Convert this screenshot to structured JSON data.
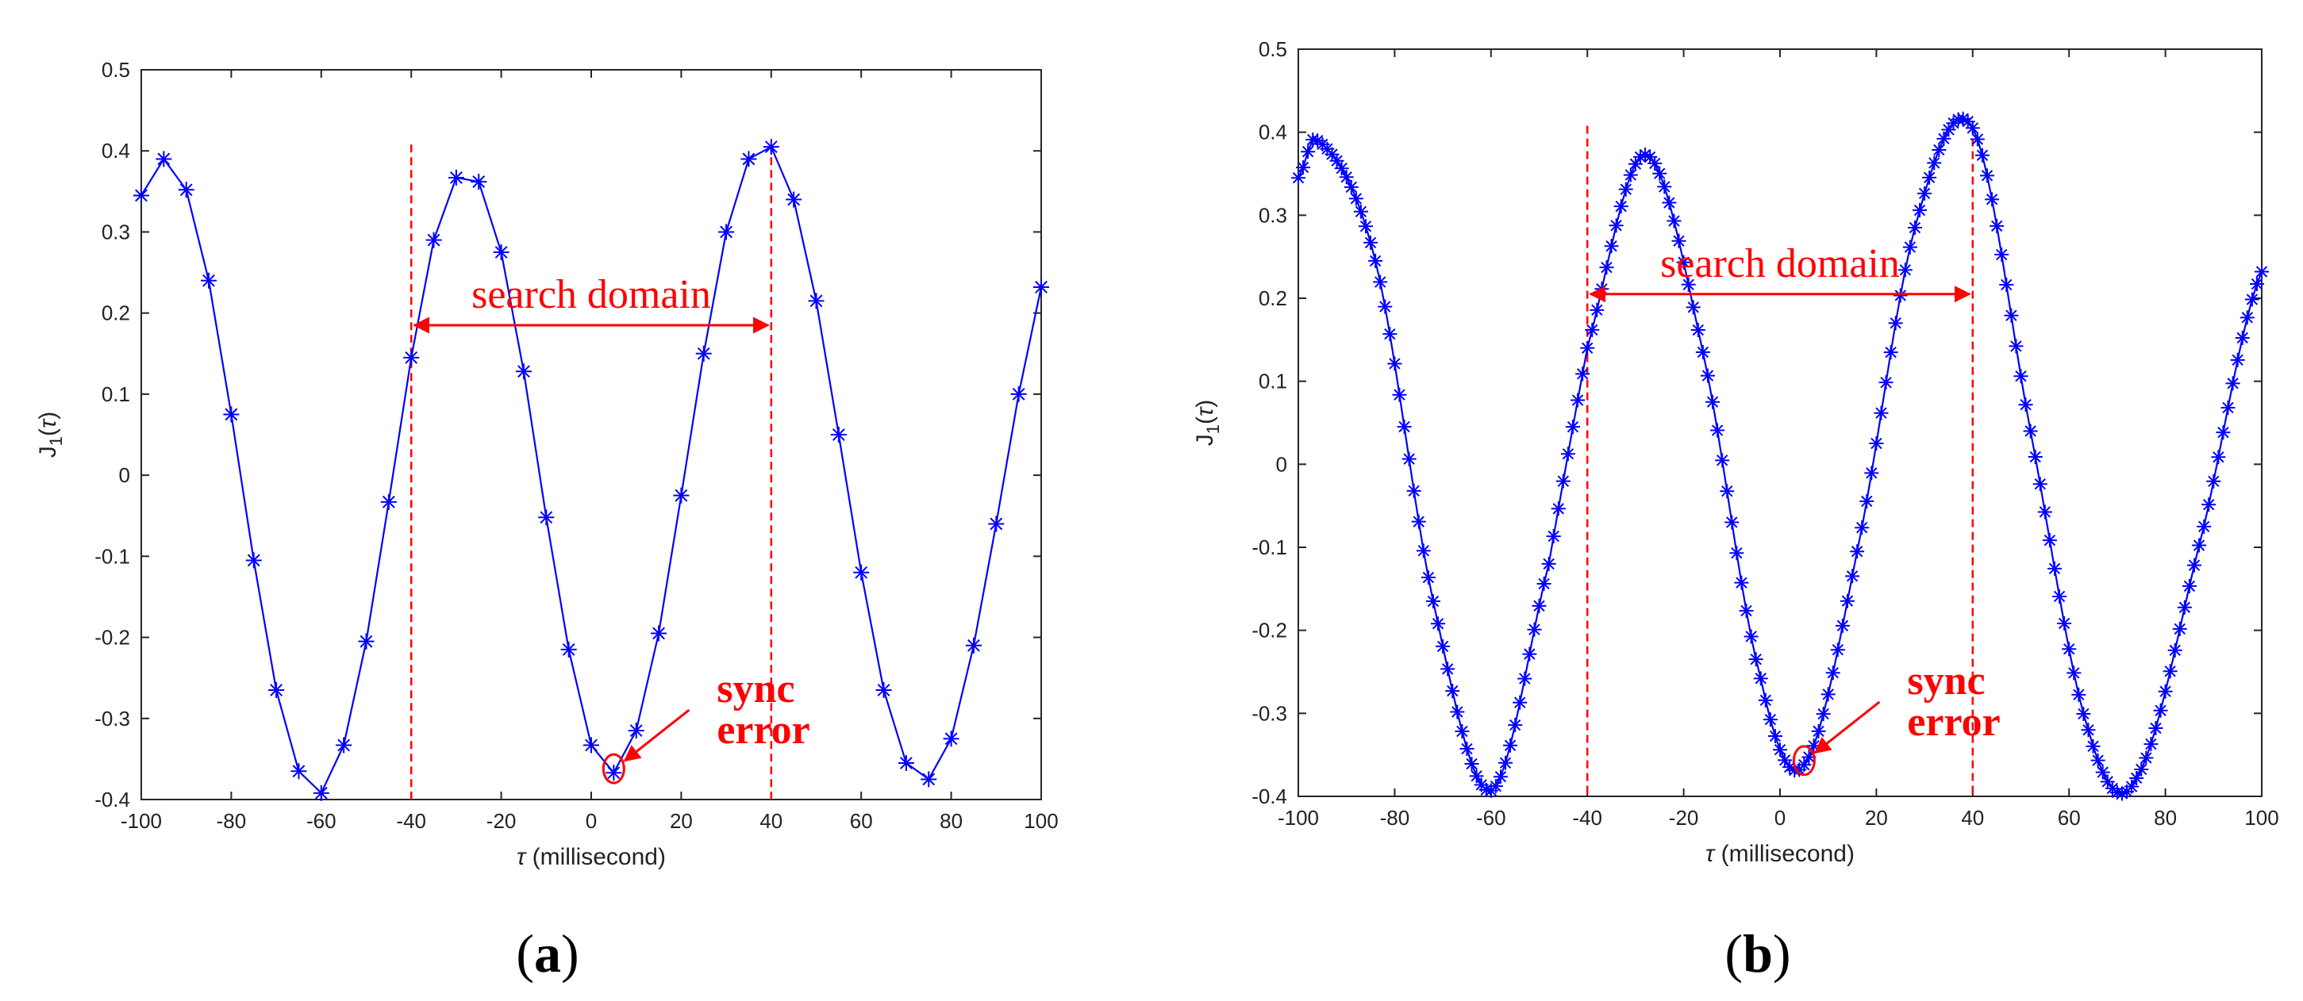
{
  "chart_data": [
    {
      "type": "line",
      "panel_label": "(a)",
      "panel_letter": "a",
      "xlabel": "τ (millisecond)",
      "ylabel": "J1(τ)",
      "xlim": [
        -100,
        100
      ],
      "ylim": [
        -0.4,
        0.5
      ],
      "xticks": [
        -100,
        -80,
        -60,
        -40,
        -20,
        0,
        20,
        40,
        60,
        80,
        100
      ],
      "yticks": [
        -0.4,
        -0.3,
        -0.2,
        -0.1,
        0,
        0.1,
        0.2,
        0.3,
        0.4,
        0.5
      ],
      "grid": false,
      "marker": "asterisk",
      "series": [
        {
          "color": "#0000ff",
          "x": [
            -100,
            -95,
            -90,
            -85,
            -80,
            -75,
            -70,
            -65,
            -60,
            -55,
            -50,
            -45,
            -40,
            -35,
            -30,
            -25,
            -20,
            -15,
            -10,
            -5,
            0,
            5,
            10,
            15,
            20,
            25,
            30,
            35,
            40,
            45,
            50,
            55,
            60,
            65,
            70,
            75,
            80,
            85,
            90,
            95,
            100
          ],
          "y": [
            0.345,
            0.39,
            0.352,
            0.24,
            0.075,
            -0.105,
            -0.265,
            -0.365,
            -0.392,
            -0.333,
            -0.205,
            -0.033,
            0.145,
            0.29,
            0.367,
            0.362,
            0.275,
            0.128,
            -0.052,
            -0.215,
            -0.333,
            -0.367,
            -0.315,
            -0.195,
            -0.025,
            0.15,
            0.3,
            0.39,
            0.405,
            0.34,
            0.215,
            0.05,
            -0.12,
            -0.265,
            -0.355,
            -0.375,
            -0.325,
            -0.21,
            -0.06,
            0.1,
            0.232
          ]
        }
      ],
      "annotations": {
        "search_domain_text": "search domain",
        "search_domain_range": [
          -40,
          40
        ],
        "search_arrow_y": 0.185,
        "sync_error_line1": "sync",
        "sync_error_line2": "error",
        "sync_point": [
          5,
          -0.36
        ],
        "annotation_color": "#ff0000"
      }
    },
    {
      "type": "line",
      "panel_label": "(b)",
      "panel_letter": "b",
      "xlabel": "τ (millisecond)",
      "ylabel": "J1(τ)",
      "xlim": [
        -100,
        100
      ],
      "ylim": [
        -0.4,
        0.5
      ],
      "xticks": [
        -100,
        -80,
        -60,
        -40,
        -20,
        0,
        20,
        40,
        60,
        80,
        100
      ],
      "yticks": [
        -0.4,
        -0.3,
        -0.2,
        -0.1,
        0,
        0.1,
        0.2,
        0.3,
        0.4,
        0.5
      ],
      "grid": false,
      "marker": "asterisk",
      "sample_step": 1,
      "series": [
        {
          "color": "#0000ff",
          "x": [
            -100,
            -96,
            -84,
            -72,
            -60,
            -48,
            -40,
            -28,
            -16,
            -4,
            5,
            16,
            28,
            40,
            52,
            64,
            74,
            88,
            100
          ],
          "y": [
            0.345,
            0.39,
            0.245,
            -0.165,
            -0.393,
            -0.12,
            0.14,
            0.373,
            0.135,
            -0.258,
            -0.362,
            -0.105,
            0.285,
            0.405,
            0.04,
            -0.32,
            -0.378,
            -0.075,
            0.232
          ]
        }
      ],
      "annotations": {
        "search_domain_text": "search domain",
        "search_domain_range": [
          -40,
          40
        ],
        "search_arrow_y": 0.205,
        "sync_error_line1": "sync",
        "sync_error_line2": "error",
        "sync_point": [
          5,
          -0.355
        ],
        "annotation_color": "#ff0000"
      }
    }
  ]
}
